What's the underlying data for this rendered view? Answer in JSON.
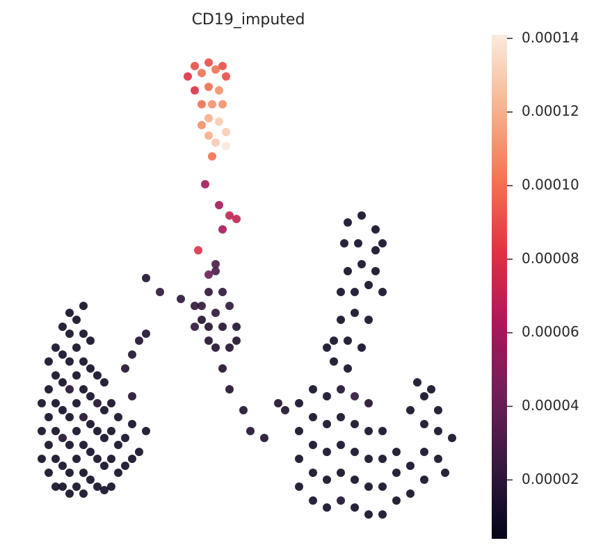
{
  "chart_data": {
    "type": "scatter",
    "title": "CD19_imputed",
    "xlim": [
      3,
      69
    ],
    "ylim": [
      4,
      74
    ],
    "x": [
      6,
      6,
      6,
      7,
      7,
      7,
      7,
      7,
      8,
      8,
      8,
      8,
      8,
      8,
      9,
      9,
      9,
      9,
      9,
      9,
      9,
      10,
      10,
      10,
      10,
      10,
      10,
      10,
      10,
      11,
      11,
      11,
      11,
      11,
      11,
      11,
      12,
      12,
      12,
      12,
      12,
      12,
      12,
      12,
      13,
      13,
      13,
      13,
      13,
      13,
      14,
      14,
      14,
      14,
      14,
      15,
      15,
      15,
      15,
      15,
      16,
      16,
      16,
      16,
      17,
      17,
      17,
      18,
      18,
      19,
      19,
      20,
      21,
      19,
      18,
      19,
      20,
      21,
      21,
      23,
      26,
      28,
      29,
      30,
      31,
      32,
      33,
      35,
      36,
      38,
      40,
      41,
      28,
      29,
      30,
      30,
      31,
      31,
      32,
      32,
      33,
      33,
      34,
      34,
      30,
      31,
      28.5,
      32,
      33,
      34,
      31.5,
      29.5,
      27,
      28,
      29,
      30,
      31,
      32,
      32.5,
      28,
      30,
      31.5,
      29,
      30.5,
      32,
      29,
      30,
      31.5,
      32.5,
      30,
      31,
      32.5,
      30.5,
      50,
      52,
      54,
      49.5,
      51.5,
      54,
      55,
      50,
      52,
      54,
      49,
      51,
      53,
      55,
      49,
      51,
      53,
      48,
      50,
      52,
      48,
      50,
      47,
      43,
      43,
      43,
      43,
      45,
      45,
      45,
      45,
      45,
      47,
      47,
      47,
      47,
      47,
      49,
      49,
      49,
      49,
      49,
      51,
      51,
      51,
      51,
      51,
      53,
      53,
      53,
      53,
      53,
      55,
      55,
      55,
      55,
      57,
      57,
      57,
      59,
      59,
      61,
      61,
      61,
      61,
      63,
      63,
      63,
      65,
      60,
      62,
      59,
      64
    ],
    "y": [
      14,
      18,
      22,
      12,
      16,
      20,
      24,
      28,
      10,
      14,
      18,
      22,
      26,
      30,
      10,
      13,
      17,
      21,
      25,
      29,
      33,
      9,
      12,
      16,
      20,
      24,
      28,
      32,
      35,
      10,
      14,
      18,
      22,
      26,
      30,
      34,
      9,
      12,
      16,
      20,
      24,
      28,
      32,
      36,
      11,
      15,
      19,
      23,
      27,
      31,
      10,
      14,
      18,
      22,
      26,
      9.5,
      13,
      17,
      21,
      25,
      10,
      14,
      18,
      22,
      12,
      16,
      20,
      13,
      17,
      14,
      19,
      15,
      18,
      23,
      27,
      29,
      31,
      32,
      40,
      38,
      37,
      36,
      34,
      33,
      30,
      27,
      24,
      21,
      18,
      17,
      22,
      21,
      33,
      36,
      31,
      38,
      35,
      41,
      33,
      38,
      30,
      36,
      33,
      31,
      40.5,
      42,
      44,
      47,
      49,
      48.5,
      50.5,
      53.5,
      69,
      70.5,
      69.5,
      71,
      70,
      70.5,
      69,
      67,
      67.5,
      67,
      65,
      65,
      65,
      62,
      63,
      62.5,
      61,
      60.5,
      59.5,
      59,
      57.5,
      48,
      49,
      47,
      45,
      45,
      44,
      45,
      41,
      42,
      41,
      38,
      38,
      39,
      38,
      34,
      35,
      34,
      31,
      31,
      30,
      28,
      27,
      30,
      10,
      14,
      18,
      22,
      8,
      12,
      16,
      20,
      24,
      7,
      11,
      15,
      19,
      23,
      8,
      12,
      16,
      20,
      24,
      7,
      11,
      15,
      19,
      23,
      6,
      10,
      14,
      18,
      22,
      6,
      10,
      14,
      18,
      8,
      12,
      15,
      9,
      13,
      11,
      15,
      19,
      23,
      14,
      18,
      21,
      17,
      25,
      24,
      21,
      12
    ],
    "values": [
      1e-05,
      1e-05,
      1e-05,
      1e-05,
      1e-05,
      1e-05,
      1e-05,
      1e-05,
      1e-05,
      1e-05,
      1e-05,
      1e-05,
      1e-05,
      1e-05,
      1e-05,
      1e-05,
      1.5e-05,
      1e-05,
      1e-05,
      1e-05,
      1e-05,
      1e-05,
      1e-05,
      1e-05,
      1e-05,
      1.5e-05,
      1e-05,
      1e-05,
      1e-05,
      1e-05,
      1e-05,
      1e-05,
      1e-05,
      1e-05,
      1e-05,
      1e-05,
      1e-05,
      1e-05,
      1e-05,
      1.5e-05,
      1e-05,
      1e-05,
      1e-05,
      1e-05,
      1e-05,
      1e-05,
      1e-05,
      1e-05,
      1e-05,
      1e-05,
      1e-05,
      1e-05,
      1e-05,
      1.5e-05,
      1e-05,
      1e-05,
      1e-05,
      1e-05,
      1e-05,
      1e-05,
      1e-05,
      1e-05,
      1e-05,
      1e-05,
      1e-05,
      1e-05,
      1e-05,
      1e-05,
      1e-05,
      1e-05,
      1e-05,
      1e-05,
      1e-05,
      1.5e-05,
      1.5e-05,
      1.5e-05,
      1.5e-05,
      1.5e-05,
      1.5e-05,
      2e-05,
      2e-05,
      2e-05,
      1.5e-05,
      1.5e-05,
      1.5e-05,
      1.5e-05,
      1.5e-05,
      1.5e-05,
      1.5e-05,
      1.5e-05,
      1.5e-05,
      1.5e-05,
      2e-05,
      2e-05,
      1.5e-05,
      2e-05,
      2e-05,
      3e-05,
      1.5e-05,
      2e-05,
      1.5e-05,
      2e-05,
      1.5e-05,
      1.5e-05,
      4e-05,
      3e-05,
      8e-05,
      6e-05,
      7e-05,
      7e-05,
      6e-05,
      6e-05,
      8e-05,
      9e-05,
      0.0001,
      9e-05,
      0.0001,
      9e-05,
      9e-05,
      8e-05,
      0.0001,
      0.00011,
      0.0001,
      0.00011,
      0.00011,
      0.00011,
      0.00012,
      0.00013,
      0.00013,
      0.00012,
      0.00013,
      0.00014,
      0.0001,
      1e-05,
      1e-05,
      1e-05,
      1e-05,
      1e-05,
      1e-05,
      1e-05,
      1e-05,
      1e-05,
      1e-05,
      1e-05,
      1e-05,
      1e-05,
      1e-05,
      1e-05,
      1e-05,
      1e-05,
      1e-05,
      1e-05,
      1e-05,
      1e-05,
      1e-05,
      1e-05,
      1e-05,
      1e-05,
      1e-05,
      1e-05,
      1e-05,
      1e-05,
      1e-05,
      1e-05,
      1e-05,
      1e-05,
      1e-05,
      1e-05,
      1e-05,
      1e-05,
      1.5e-05,
      1e-05,
      1e-05,
      1e-05,
      1.5e-05,
      1e-05,
      1e-05,
      1e-05,
      1e-05,
      2e-05,
      1e-05,
      1e-05,
      1e-05,
      1e-05,
      1.5e-05,
      1e-05,
      1e-05,
      1e-05,
      1e-05,
      1e-05,
      1e-05,
      1e-05,
      1e-05,
      1e-05,
      1e-05,
      1e-05,
      1e-05,
      1e-05,
      1e-05,
      1e-05,
      1e-05,
      1e-05,
      1e-05,
      1e-05,
      1e-05,
      1e-05
    ],
    "colormap": [
      "#03051a",
      "#35193e",
      "#701f57",
      "#ad1759",
      "#e13342",
      "#f37651",
      "#f6b48f",
      "#faebdd"
    ],
    "clim": [
      4e-06,
      0.000141
    ],
    "cticks": [
      2e-05,
      4e-05,
      6e-05,
      8e-05,
      {
        "value": 0.0001,
        "label": "0.00010"
      },
      0.00012,
      0.00014
    ]
  }
}
